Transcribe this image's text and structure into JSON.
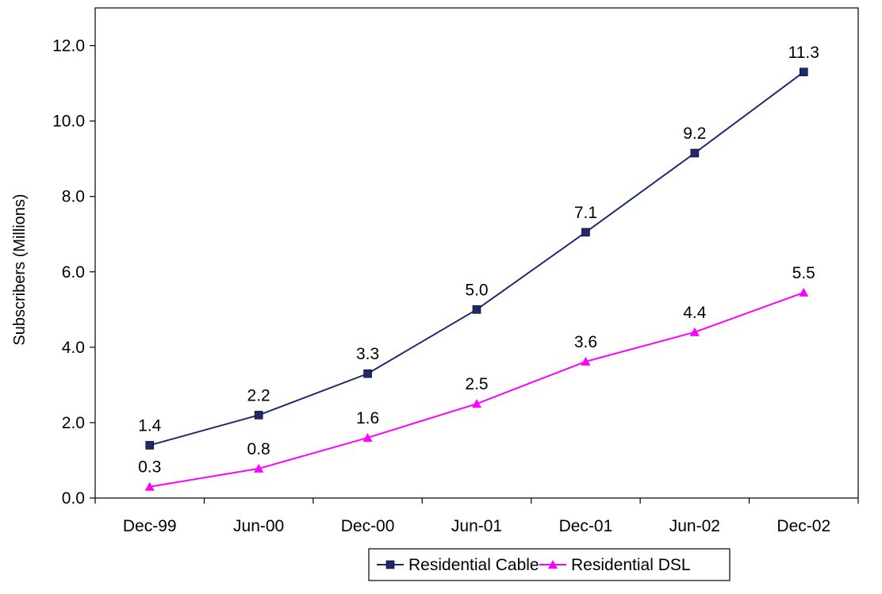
{
  "chart_data": {
    "type": "line",
    "title": "",
    "xlabel": "",
    "ylabel": "Subscribers (Millions)",
    "categories": [
      "Dec-99",
      "Jun-00",
      "Dec-00",
      "Jun-01",
      "Dec-01",
      "Jun-02",
      "Dec-02"
    ],
    "ylim": [
      0,
      13
    ],
    "yticks": [
      0.0,
      2.0,
      4.0,
      6.0,
      8.0,
      10.0,
      12.0
    ],
    "ytick_labels": [
      "0.0",
      "2.0",
      "4.0",
      "6.0",
      "8.0",
      "10.0",
      "12.0"
    ],
    "grid": false,
    "legend_position": "bottom",
    "series": [
      {
        "name": "Residential Cable",
        "values": [
          1.4,
          2.2,
          3.3,
          5.0,
          7.05,
          9.15,
          11.3
        ],
        "labels": [
          "1.4",
          "2.2",
          "3.3",
          "5.0",
          "7.1",
          "9.2",
          "11.3"
        ],
        "color": "#1f2a6e",
        "marker": "square"
      },
      {
        "name": "Residential DSL",
        "values": [
          0.3,
          0.78,
          1.6,
          2.5,
          3.62,
          4.4,
          5.45
        ],
        "labels": [
          "0.3",
          "0.8",
          "1.6",
          "2.5",
          "3.6",
          "4.4",
          "5.5"
        ],
        "color": "#ff00ff",
        "marker": "triangle"
      }
    ]
  }
}
